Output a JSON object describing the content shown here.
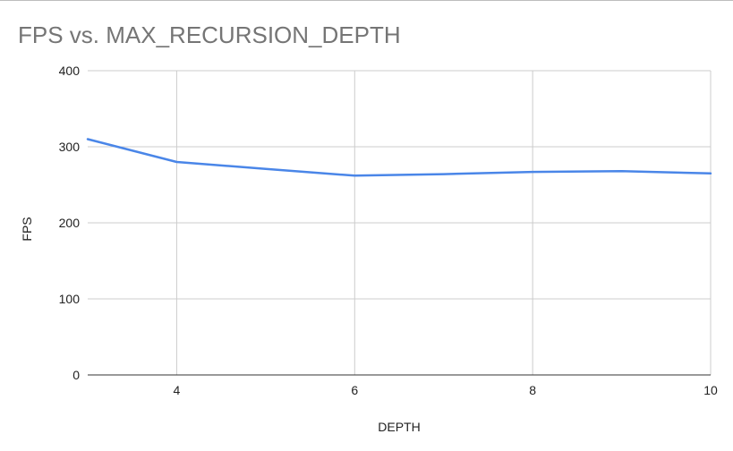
{
  "chart_data": {
    "type": "line",
    "title": "FPS vs. MAX_RECURSION_DEPTH",
    "xlabel": "DEPTH",
    "ylabel": "FPS",
    "xlim": [
      3,
      10
    ],
    "ylim": [
      0,
      400
    ],
    "x_ticks": [
      4,
      6,
      8,
      10
    ],
    "y_ticks": [
      0,
      100,
      200,
      300,
      400
    ],
    "grid": true,
    "series": [
      {
        "x": [
          3,
          4,
          5,
          6,
          7,
          8,
          9,
          10
        ],
        "values": [
          310,
          280,
          271,
          262,
          264,
          267,
          268,
          265
        ],
        "color": "#4a86e8"
      }
    ]
  }
}
